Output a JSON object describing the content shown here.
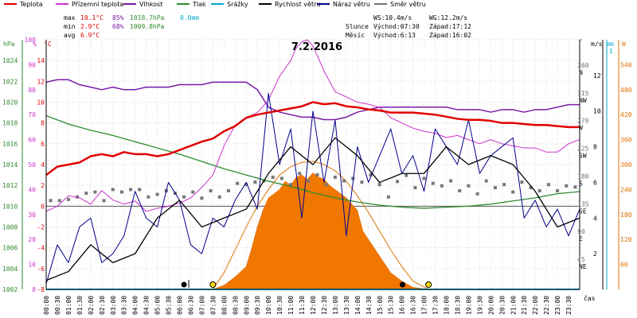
{
  "chart_data": {
    "type": "line",
    "title": "7.2.2016",
    "legend": [
      {
        "label": "Teplota",
        "color": "#e00000"
      },
      {
        "label": "Přízemní teplota",
        "color": "#cc33cc"
      },
      {
        "label": "Vlhkost",
        "color": "#7a1aa8"
      },
      {
        "label": "Tlak",
        "color": "#2e8b2e"
      },
      {
        "label": "Srážky",
        "color": "#00aacc"
      },
      {
        "label": "Rychlost větru",
        "color": "#000000"
      },
      {
        "label": "Náraz větru",
        "color": "#00008b"
      },
      {
        "label": "Směr větru",
        "color": "#707070"
      }
    ],
    "stats": {
      "max_label": "max",
      "max_temp": "10.1°C",
      "max_hum": "85%",
      "max_press": "1018.7hPa",
      "max_rain": "0.0mm",
      "min_label": "min",
      "min_temp": "2.9°C",
      "min_hum": "68%",
      "min_press": "1009.8hPa",
      "avg_label": "avg",
      "avg_temp": "6.9°C"
    },
    "info": {
      "ws": "WS:10.4m/s",
      "wg": "WG:12.2m/s",
      "sun_label": "Slunce",
      "sun_rise": "Východ:07:30",
      "sun_set": "Západ:17:12",
      "moon_label": "Měsíc",
      "moon_rise": "Východ:6:13",
      "moon_set": "Západ:16:02"
    },
    "axes": {
      "hpa_label": "hPa",
      "hum_label": "%",
      "temp_label": "°C",
      "dir_label": "°",
      "ms_label": "m/s",
      "mm_label": "mm",
      "w_label": "W",
      "ms_top": "-1",
      "xlabel": "čas",
      "hpa_ticks": [
        "1024",
        "1022",
        "1020",
        "1018",
        "1016",
        "1014",
        "1012",
        "1010",
        "1008",
        "1006",
        "1004",
        "1002"
      ],
      "hum_ticks": [
        "100",
        "90",
        "80",
        "70",
        "60",
        "50",
        "40",
        "30",
        "20",
        "10",
        "0"
      ],
      "temp_ticks": [
        "14",
        "12",
        "10",
        "8",
        "6",
        "4",
        "2",
        "0",
        "-2",
        "-4",
        "-6",
        "-8"
      ],
      "dir_ticks": [
        {
          "deg": "360",
          "name": "N"
        },
        {
          "deg": "315",
          "name": "NW"
        },
        {
          "deg": "270",
          "name": "W"
        },
        {
          "deg": "225",
          "name": "SW"
        },
        {
          "deg": "180",
          "name": "S"
        },
        {
          "deg": "135",
          "name": "SE"
        },
        {
          "deg": "90",
          "name": "E"
        },
        {
          "deg": "45",
          "name": "NE"
        }
      ],
      "ms_ticks": [
        "12",
        "10",
        "8",
        "6",
        "4",
        "2"
      ],
      "w_ticks": [
        "540",
        "480",
        "420",
        "360",
        "300",
        "240",
        "180",
        "120",
        "60"
      ],
      "time_ticks": [
        "00:00",
        "00:30",
        "01:00",
        "01:30",
        "02:00",
        "02:30",
        "03:00",
        "03:30",
        "04:00",
        "04:30",
        "05:00",
        "05:30",
        "06:00",
        "06:30",
        "07:00",
        "07:30",
        "08:00",
        "08:30",
        "09:00",
        "09:30",
        "10:00",
        "10:30",
        "11:00",
        "11:30",
        "12:00",
        "12:30",
        "13:00",
        "13:30",
        "14:00",
        "14:30",
        "15:00",
        "15:30",
        "16:00",
        "16:30",
        "17:00",
        "17:30",
        "18:00",
        "18:30",
        "19:00",
        "19:30",
        "20:00",
        "20:30",
        "21:00",
        "21:30",
        "22:00",
        "22:30",
        "23:00",
        "23:30"
      ]
    },
    "temp_range": [
      -8,
      16
    ],
    "temperature": {
      "x": [
        0,
        0.5,
        1,
        1.5,
        2,
        2.5,
        3,
        3.5,
        4,
        4.5,
        5,
        5.5,
        6,
        6.5,
        7,
        7.5,
        8,
        8.5,
        9,
        9.5,
        10,
        10.5,
        11,
        11.5,
        12,
        12.5,
        13,
        13.5,
        14,
        14.5,
        15,
        15.5,
        16,
        16.5,
        17,
        17.5,
        18,
        18.5,
        19,
        19.5,
        20,
        20.5,
        21,
        21.5,
        22,
        22.5,
        23,
        23.5,
        24
      ],
      "y": [
        3.0,
        3.8,
        4.0,
        4.2,
        4.8,
        5.0,
        4.8,
        5.2,
        5.0,
        5.0,
        4.8,
        5.0,
        5.4,
        5.8,
        6.2,
        6.5,
        7.2,
        7.7,
        8.5,
        8.8,
        9.0,
        9.2,
        9.4,
        9.6,
        10.0,
        9.8,
        9.9,
        9.6,
        9.5,
        9.3,
        9.2,
        9.0,
        9.0,
        9.0,
        8.9,
        8.8,
        8.6,
        8.4,
        8.3,
        8.3,
        8.2,
        8.0,
        8.0,
        7.9,
        7.8,
        7.8,
        7.7,
        7.6,
        7.6
      ]
    },
    "ground_temperature": {
      "x": [
        0,
        0.5,
        1,
        1.5,
        2,
        2.5,
        3,
        3.5,
        4,
        4.5,
        5,
        5.5,
        6,
        6.5,
        7,
        7.5,
        8,
        8.5,
        9,
        9.5,
        10,
        10.5,
        11,
        11.25,
        11.5,
        11.75,
        12,
        12.25,
        12.5,
        12.75,
        13,
        13.5,
        14,
        14.5,
        15,
        15.5,
        16,
        16.5,
        17,
        17.5,
        18,
        18.5,
        19,
        19.5,
        20,
        20.5,
        21,
        21.5,
        22,
        22.5,
        23,
        23.5,
        24
      ],
      "y": [
        -0.5,
        0.0,
        1.0,
        0.8,
        0.2,
        1.5,
        0.6,
        0.2,
        0.5,
        -0.5,
        -0.2,
        0.0,
        0.3,
        0.8,
        1.8,
        3.0,
        5.8,
        7.8,
        8.5,
        9.0,
        10.2,
        12.5,
        14.0,
        15.2,
        15.8,
        16.0,
        15.4,
        14.2,
        13.0,
        12.0,
        11.0,
        10.5,
        10.0,
        9.8,
        9.5,
        8.5,
        8.0,
        7.5,
        7.2,
        7.0,
        6.6,
        6.8,
        6.4,
        6.0,
        6.4,
        6.0,
        5.8,
        5.6,
        5.6,
        5.2,
        5.2,
        6.0,
        6.4
      ]
    },
    "humidity_range": [
      0,
      100
    ],
    "humidity": {
      "x": [
        0,
        0.5,
        1,
        1.5,
        2,
        2.5,
        3,
        3.5,
        4,
        4.5,
        5,
        5.5,
        6,
        6.5,
        7,
        7.5,
        8,
        8.5,
        9,
        9.5,
        10,
        10.5,
        11,
        11.5,
        12,
        12.5,
        13,
        13.5,
        14,
        14.5,
        15,
        15.5,
        16,
        16.5,
        17,
        17.5,
        18,
        18.5,
        19,
        19.5,
        20,
        20.5,
        21,
        21.5,
        22,
        22.5,
        23,
        23.5,
        24
      ],
      "y": [
        83,
        84,
        84,
        82,
        81,
        80,
        81,
        80,
        80,
        81,
        81,
        81,
        82,
        82,
        82,
        83,
        83,
        83,
        83,
        80,
        73,
        71,
        70,
        69,
        69,
        68,
        68,
        69,
        71,
        72,
        73,
        73,
        73,
        73,
        73,
        73,
        73,
        72,
        72,
        72,
        71,
        72,
        72,
        71,
        72,
        72,
        73,
        74,
        74
      ]
    },
    "pressure_range": [
      1002,
      1026
    ],
    "pressure": {
      "x": [
        0,
        1,
        2,
        3,
        4,
        5,
        6,
        7,
        8,
        9,
        10,
        11,
        12,
        13,
        14,
        15,
        16,
        17,
        18,
        19,
        20,
        21,
        22,
        23,
        24
      ],
      "y": [
        1018.7,
        1017.9,
        1017.3,
        1016.8,
        1016.2,
        1015.6,
        1015.0,
        1014.3,
        1013.6,
        1013.0,
        1012.4,
        1011.9,
        1011.3,
        1010.8,
        1010.4,
        1010.1,
        1009.9,
        1009.8,
        1009.9,
        1010.0,
        1010.2,
        1010.5,
        1010.8,
        1011.2,
        1011.4
      ]
    },
    "wind_range": [
      0,
      14
    ],
    "wind_speed": {
      "x": [
        0,
        1,
        2,
        3,
        4,
        5,
        6,
        7,
        8,
        9,
        10,
        11,
        12,
        13,
        14,
        15,
        16,
        17,
        18,
        19,
        20,
        21,
        22,
        23,
        24
      ],
      "y": [
        0.5,
        1.0,
        2.5,
        1.5,
        2.0,
        4.0,
        5.0,
        3.5,
        4.0,
        4.5,
        6.5,
        8.0,
        7.0,
        8.5,
        7.5,
        6.0,
        6.5,
        6.5,
        8.0,
        7.0,
        7.5,
        7.0,
        5.5,
        3.5,
        4.0
      ]
    },
    "wind_gust": {
      "x": [
        0,
        0.5,
        1,
        1.5,
        2,
        2.5,
        3,
        3.5,
        4,
        4.5,
        5,
        5.5,
        6,
        6.5,
        7,
        7.5,
        8,
        8.5,
        9,
        9.5,
        10,
        10.5,
        11,
        11.5,
        12,
        12.5,
        13,
        13.5,
        14,
        14.5,
        15,
        15.5,
        16,
        16.5,
        17,
        17.5,
        18,
        18.5,
        19,
        19.5,
        20,
        20.5,
        21,
        21.5,
        22,
        22.5,
        23,
        23.5,
        24
      ],
      "y": [
        0.3,
        2.5,
        1.5,
        3.5,
        4.0,
        1.5,
        2.0,
        3.0,
        5.5,
        4.0,
        3.5,
        6.0,
        5.0,
        2.5,
        2.0,
        4.0,
        3.5,
        5.0,
        6.0,
        4.5,
        11.0,
        7.0,
        9.0,
        4.0,
        10.0,
        6.0,
        9.5,
        3.0,
        8.0,
        6.0,
        7.5,
        9.0,
        6.5,
        7.5,
        5.5,
        9.0,
        8.0,
        7.0,
        9.5,
        6.5,
        7.5,
        8.0,
        8.5,
        4.0,
        5.0,
        3.5,
        4.5,
        3.0,
        4.5
      ]
    },
    "dir_range": [
      0,
      405
    ],
    "wind_direction": {
      "x": [
        0.2,
        0.6,
        1.0,
        1.4,
        1.8,
        2.2,
        2.6,
        3.0,
        3.4,
        3.8,
        4.2,
        4.6,
        5.0,
        5.4,
        5.8,
        6.2,
        6.6,
        7.0,
        7.4,
        7.8,
        8.2,
        8.6,
        9.0,
        9.4,
        9.8,
        10.2,
        10.6,
        11.0,
        11.4,
        11.8,
        12.2,
        12.6,
        13.0,
        13.4,
        13.8,
        14.2,
        14.6,
        15.0,
        15.4,
        15.8,
        16.2,
        16.6,
        17.0,
        17.4,
        17.8,
        18.2,
        18.6,
        19.0,
        19.4,
        19.8,
        20.2,
        20.6,
        21.0,
        21.4,
        21.8,
        22.2,
        22.6,
        23.0,
        23.4,
        23.8
      ],
      "y": [
        144,
        144,
        146,
        150,
        156,
        158,
        144,
        162,
        158,
        162,
        162,
        150,
        154,
        160,
        156,
        150,
        158,
        148,
        160,
        150,
        160,
        172,
        170,
        174,
        176,
        182,
        180,
        170,
        188,
        176,
        186,
        170,
        182,
        176,
        180,
        174,
        186,
        170,
        150,
        175,
        185,
        165,
        180,
        172,
        168,
        176,
        160,
        168,
        155,
        176,
        165,
        170,
        158,
        174,
        165,
        160,
        170,
        160,
        168,
        166
      ]
    },
    "solar_range": [
      0,
      600
    ],
    "solar_radiation": {
      "x": [
        7.5,
        8,
        8.5,
        9,
        9.25,
        9.5,
        9.75,
        10,
        10.25,
        10.5,
        10.75,
        11,
        11.25,
        11.5,
        11.75,
        12,
        12.25,
        12.5,
        12.75,
        13,
        13.25,
        13.5,
        13.75,
        14,
        14.25,
        14.5,
        14.75,
        15,
        15.5,
        16,
        16.5,
        17.2
      ],
      "y": [
        0,
        10,
        30,
        55,
        100,
        150,
        190,
        220,
        230,
        240,
        260,
        250,
        270,
        275,
        265,
        280,
        270,
        265,
        250,
        240,
        230,
        220,
        205,
        190,
        140,
        120,
        100,
        80,
        40,
        20,
        5,
        0
      ]
    },
    "theoretical_solar": {
      "x": [
        7.5,
        8,
        8.5,
        9,
        9.5,
        10,
        10.5,
        11,
        11.5,
        12,
        12.5,
        13,
        13.5,
        14,
        14.5,
        15,
        15.5,
        16,
        16.5,
        17.2
      ],
      "y": [
        0,
        40,
        95,
        150,
        200,
        240,
        275,
        295,
        305,
        308,
        300,
        285,
        260,
        225,
        185,
        140,
        95,
        55,
        20,
        0
      ]
    },
    "markers": {
      "moon_rise": 6.2,
      "moon_set": 16.03,
      "sun_rise": 7.5,
      "sun_set": 17.2
    }
  }
}
